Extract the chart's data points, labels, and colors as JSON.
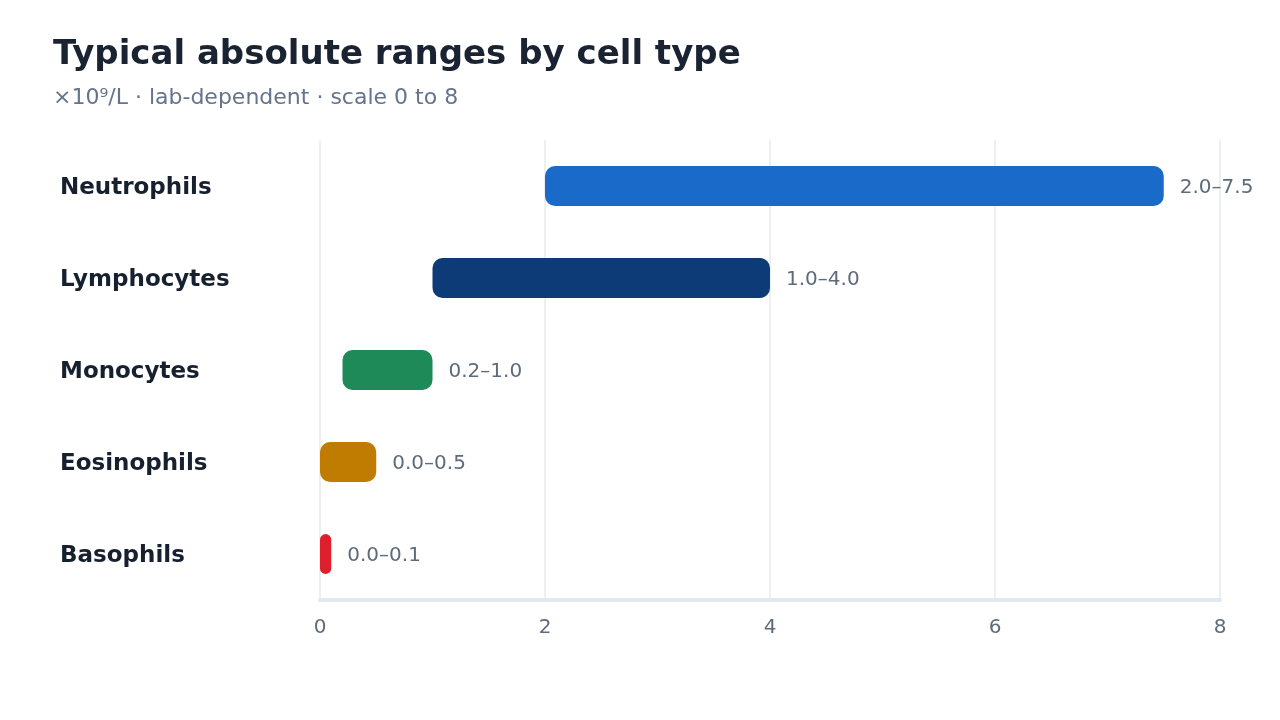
{
  "chart_data": {
    "type": "bar",
    "orientation": "horizontal",
    "title": "Typical absolute ranges by cell type",
    "subtitle": "×10⁹/L · lab-dependent · scale 0 to 8",
    "categories": [
      "Neutrophils",
      "Lymphocytes",
      "Monocytes",
      "Eosinophils",
      "Basophils"
    ],
    "base": [
      2.0,
      1.0,
      0.2,
      0.0,
      0.0
    ],
    "values": [
      5.5,
      3.0,
      0.8,
      0.5,
      0.1
    ],
    "value_labels": [
      "2.0–7.5",
      "1.0–4.0",
      "0.2–1.0",
      "0.0–0.5",
      "0.0–0.1"
    ],
    "colors": [
      "#1a6bc9",
      "#0d3b78",
      "#1e8a58",
      "#c07c00",
      "#e01f2d"
    ],
    "xlim": [
      0,
      8
    ],
    "xticks": [
      0,
      2,
      4,
      6,
      8
    ],
    "grid": "x"
  }
}
